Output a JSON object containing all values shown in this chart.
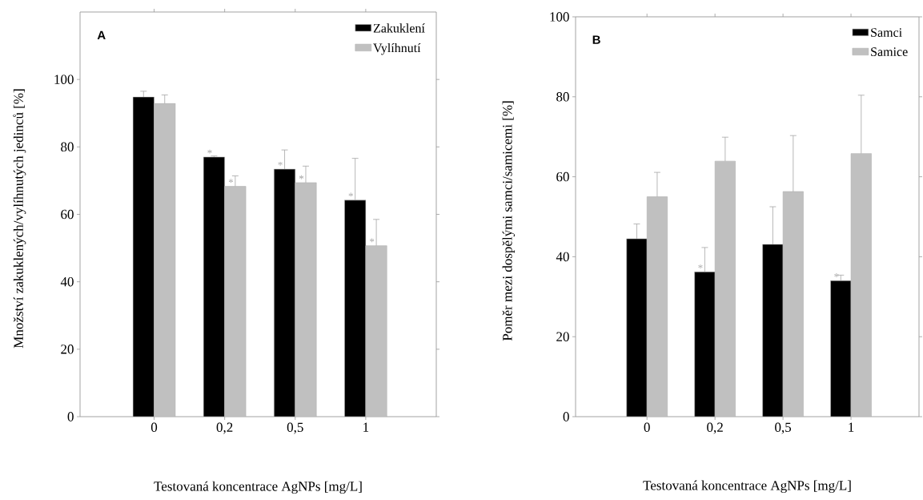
{
  "chart_data": [
    {
      "type": "bar",
      "title": "A",
      "xlabel": "Testovaná koncentrace AgNPs [mg/L]",
      "ylabel": "Množství zakuklených/vylíhnutých jedinců [%]",
      "categories": [
        "0",
        "0,2",
        "0,5",
        "1"
      ],
      "ylim": [
        0,
        120
      ],
      "yticks": [
        0,
        20,
        40,
        60,
        80,
        100
      ],
      "legend": "top right",
      "series": [
        {
          "name": "Zakuklení",
          "color": "#000000",
          "values": [
            94.8,
            77.0,
            73.4,
            64.2
          ],
          "errors": [
            [
              94.8,
              96.5
            ],
            [
              77.0,
              77.3
            ],
            [
              73.4,
              79.1
            ],
            [
              64.2,
              76.6
            ]
          ]
        },
        {
          "name": "Vylíhnutí",
          "color": "#c0c0c0",
          "values": [
            92.9,
            68.3,
            69.4,
            50.7
          ],
          "errors": [
            [
              92.9,
              95.4
            ],
            [
              68.3,
              71.4
            ],
            [
              69.4,
              74.3
            ],
            [
              50.7,
              58.5
            ]
          ]
        }
      ],
      "annotations": [
        {
          "text": "*",
          "x": "0,2",
          "y": 77.0
        },
        {
          "text": "*",
          "x": "0,2",
          "y": 68.3
        },
        {
          "text": "*",
          "x": "0,5",
          "y": 73.4
        },
        {
          "text": "*",
          "x": "0,5",
          "y": 69.4
        },
        {
          "text": "*",
          "x": "1",
          "y": 64.2
        },
        {
          "text": "*",
          "x": "1",
          "y": 50.7
        }
      ]
    },
    {
      "type": "bar",
      "title": "B",
      "xlabel": "Testovaná koncentrace AgNPs [mg/L]",
      "ylabel": "Poměr mezi dospělými samci/samicemi [%]",
      "categories": [
        "0",
        "0,2",
        "0,5",
        "1"
      ],
      "ylim": [
        0,
        100
      ],
      "yticks": [
        0,
        20,
        40,
        60,
        80,
        100
      ],
      "legend": "top right",
      "series": [
        {
          "name": "Samci",
          "color": "#000000",
          "values": [
            44.5,
            36.2,
            43.1,
            34.0
          ],
          "errors": [
            [
              44.5,
              48.2
            ],
            [
              36.2,
              42.3
            ],
            [
              43.1,
              52.5
            ],
            [
              34.0,
              35.4
            ]
          ]
        },
        {
          "name": "Samice",
          "color": "#c0c0c0",
          "values": [
            55.0,
            63.9,
            56.3,
            65.8
          ],
          "errors": [
            [
              55.0,
              61.1
            ],
            [
              63.9,
              69.9
            ],
            [
              56.3,
              70.3
            ],
            [
              65.8,
              80.4
            ]
          ]
        }
      ],
      "annotations": [
        {
          "text": "*",
          "x": "0,2",
          "y": 36.2
        },
        {
          "text": "*",
          "x": "1",
          "y": 34.0
        }
      ]
    }
  ]
}
